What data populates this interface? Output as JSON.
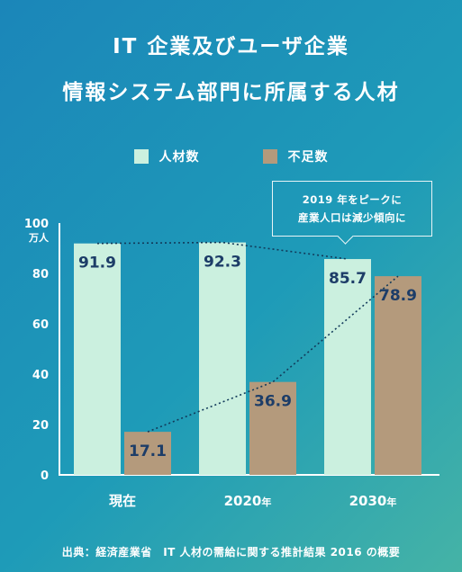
{
  "title": {
    "line1": "IT 企業及びユーザ企業",
    "line2": "情報システム部門に所属する人材"
  },
  "legend": [
    {
      "label": "人材数",
      "color": "#cbf0df"
    },
    {
      "label": "不足数",
      "color": "#b49a7c"
    }
  ],
  "callout": {
    "line1": "2019 年をピークに",
    "line2": "産業人口は減少傾向に"
  },
  "source": "出典：経済産業省　IT 人材の需給に関する推計結果 2016 の概要",
  "chart_data": {
    "type": "bar",
    "categories": [
      {
        "main": "現在",
        "suffix": ""
      },
      {
        "main": "2020",
        "suffix": "年"
      },
      {
        "main": "2030",
        "suffix": "年"
      }
    ],
    "series": [
      {
        "name": "人材数",
        "values": [
          91.9,
          92.3,
          85.7
        ],
        "color": "#cbf0df",
        "label_color": "#1d3d68"
      },
      {
        "name": "不足数",
        "values": [
          17.1,
          36.9,
          78.9
        ],
        "color": "#b49a7c",
        "label_color": "#1d3d68"
      }
    ],
    "ylim": [
      0,
      100
    ],
    "yticks": [
      0,
      20,
      40,
      60,
      80,
      100
    ],
    "yunit": "万人",
    "trend_lines": "dotted"
  }
}
